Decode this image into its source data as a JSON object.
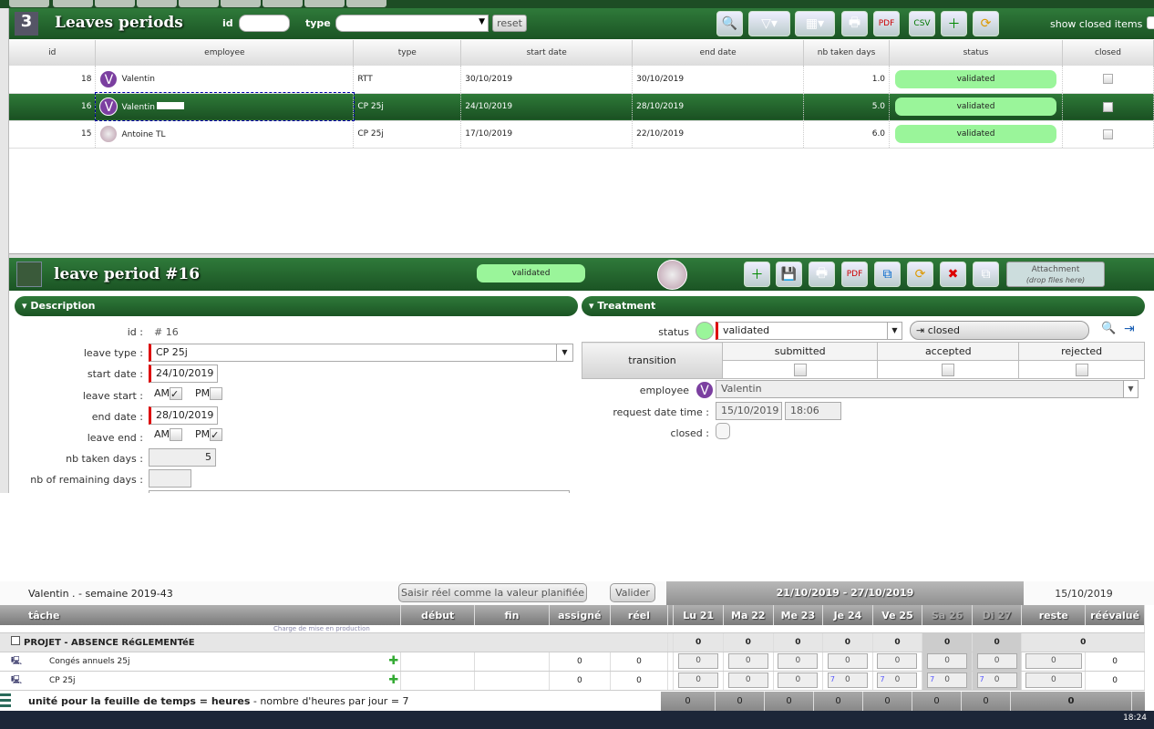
{
  "list": {
    "title": "Leaves periods",
    "filter_id_label": "id",
    "filter_type_label": "type",
    "reset_label": "reset",
    "show_closed_label": "show closed items",
    "columns": [
      "id",
      "employee",
      "type",
      "start date",
      "end date",
      "nb taken days",
      "status",
      "closed"
    ],
    "rows": [
      {
        "id": "18",
        "employee": "Valentin",
        "initial": "V",
        "type": "RTT",
        "start": "30/10/2019",
        "end": "30/10/2019",
        "days": "1.0",
        "status": "validated",
        "selected": false
      },
      {
        "id": "16",
        "employee": "Valentin",
        "initial": "V",
        "type": "CP 25j",
        "start": "24/10/2019",
        "end": "28/10/2019",
        "days": "5.0",
        "status": "validated",
        "selected": true
      },
      {
        "id": "15",
        "employee": "Antoine TL",
        "initial": "",
        "type": "CP 25j",
        "start": "17/10/2019",
        "end": "22/10/2019",
        "days": "6.0",
        "status": "validated",
        "selected": false
      }
    ]
  },
  "detail": {
    "title": "leave period  #16",
    "status_badge": "validated",
    "attachment_label": "Attachment",
    "attachment_hint": "(drop files here)",
    "description": {
      "header": "Description",
      "id_label": "id :",
      "id_value": "#  16",
      "leave_type_label": "leave type :",
      "leave_type": "CP 25j",
      "start_date_label": "start date :",
      "start_date": "24/10/2019",
      "leave_start_label": "leave start :",
      "am": "AM",
      "pm": "PM",
      "start_am": true,
      "start_pm": false,
      "end_date_label": "end date :",
      "end_date": "28/10/2019",
      "leave_end_label": "leave end :",
      "end_am": false,
      "end_pm": true,
      "nb_taken_label": "nb taken days :",
      "nb_taken": "5",
      "nb_remaining_label": "nb of remaining days :",
      "nb_remaining": ""
    },
    "treatment": {
      "header": "Treatment",
      "status_label": "status",
      "status": "validated",
      "status_color": "#9af59a",
      "closed_button": "closed",
      "transition_label": "transition",
      "transitions": [
        "submitted",
        "accepted",
        "rejected"
      ],
      "employee_label": "employee",
      "employee": "Valentin",
      "request_label": "request date time :",
      "request_date": "15/10/2019",
      "request_time": "18:06",
      "closed_label": "closed :"
    }
  },
  "timesheet": {
    "title": "Valentin  . - semaine 2019-43",
    "copy_button": "Saisir réel comme la valeur planifiée",
    "validate_button": "Valider",
    "range": "21/10/2019 - 27/10/2019",
    "date": "15/10/2019",
    "columns": [
      "tâche",
      "début",
      "fin",
      "assigné",
      "réel",
      "Lu 21",
      "Ma 22",
      "Me 23",
      "Je 24",
      "Ve 25",
      "Sa 26",
      "Di 27",
      "reste",
      "réévalué"
    ],
    "project": "PROJET - ABSENCE RéGLEMENTéE",
    "project_totals": [
      "0",
      "0",
      "0",
      "0",
      "0",
      "0",
      "0",
      "0"
    ],
    "tasks": [
      {
        "name": "Congés annuels 25j",
        "assigned": "0",
        "real": "0",
        "days": [
          "0",
          "0",
          "0",
          "0",
          "0",
          "0",
          "0"
        ],
        "planned": [
          "",
          "",
          "",
          "",
          "",
          "",
          ""
        ],
        "remaining": "0",
        "reevaluated": "0"
      },
      {
        "name": "CP 25j",
        "assigned": "0",
        "real": "0",
        "days": [
          "0",
          "0",
          "0",
          "0",
          "0",
          "0",
          "0"
        ],
        "planned": [
          "",
          "",
          "",
          "7",
          "7",
          "7",
          "7"
        ],
        "remaining": "0",
        "reevaluated": "0"
      }
    ],
    "footer_bold": "unité pour la feuille de temps = heures",
    "footer_rest": " - nombre d'heures par jour = 7",
    "footer_totals": [
      "0",
      "0",
      "0",
      "0",
      "0",
      "0",
      "0",
      "0"
    ],
    "scrolled_task_hint": "Charge de mise en production"
  },
  "taskbar": {
    "clock": "18:24"
  }
}
